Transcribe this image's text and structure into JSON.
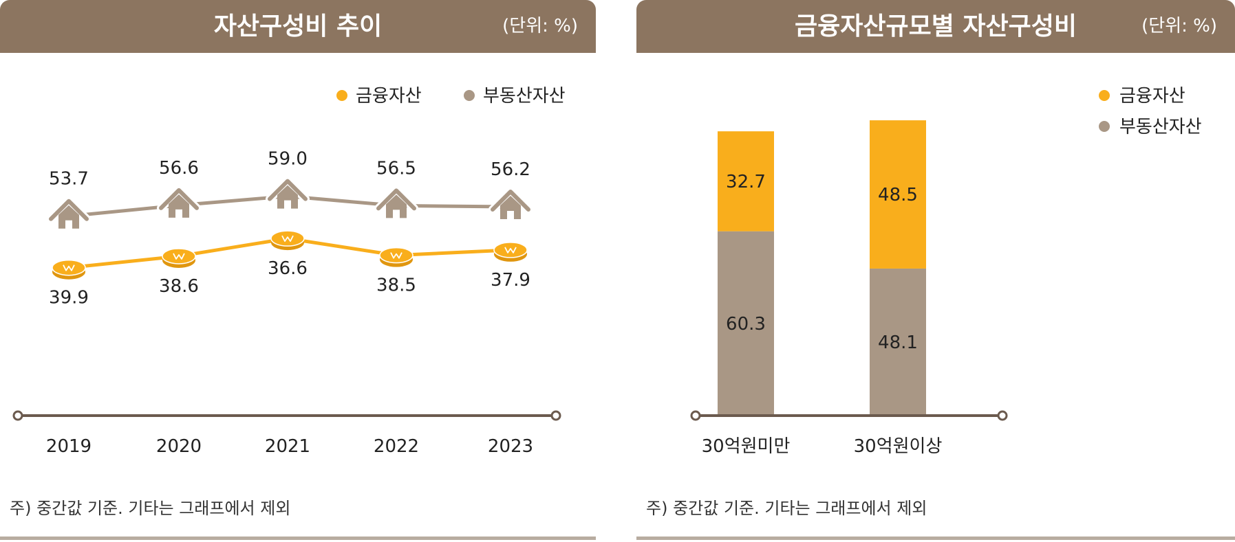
{
  "colors": {
    "financial": "#f9ae1c",
    "real_estate": "#a99785",
    "header_bg": "#8c7560",
    "axis": "#6b5a4e"
  },
  "left": {
    "title": "자산구성비 추이",
    "unit": "(단위: %)",
    "note": "주) 중간값 기준. 기타는 그래프에서 제외"
  },
  "right": {
    "title": "금융자산규모별 자산구성비",
    "unit": "(단위: %)",
    "note": "주) 중간값 기준. 기타는 그래프에서 제외"
  },
  "chart_data": [
    {
      "type": "line",
      "title": "자산구성비 추이",
      "unit": "(단위: %)",
      "categories": [
        "2019",
        "2020",
        "2021",
        "2022",
        "2023"
      ],
      "series": [
        {
          "name": "금융자산",
          "values": [
            39.9,
            38.6,
            36.6,
            38.5,
            37.9
          ],
          "labels": [
            "39.9",
            "38.6",
            "36.6",
            "38.5",
            "37.9"
          ],
          "marker": "coin-icon"
        },
        {
          "name": "부동산자산",
          "values": [
            53.7,
            56.6,
            59.0,
            56.5,
            56.2
          ],
          "labels": [
            "53.7",
            "56.6",
            "59.0",
            "56.5",
            "56.2"
          ],
          "marker": "house-icon"
        }
      ],
      "legend": [
        "금융자산",
        "부동산자산"
      ],
      "legend_position": "top-right"
    },
    {
      "type": "bar",
      "stacked": true,
      "title": "금융자산규모별 자산구성비",
      "unit": "(단위: %)",
      "categories": [
        "30억원미만",
        "30억원이상"
      ],
      "series": [
        {
          "name": "금융자산",
          "values": [
            32.7,
            48.5
          ],
          "labels": [
            "32.7",
            "48.5"
          ]
        },
        {
          "name": "부동산자산",
          "values": [
            60.3,
            48.1
          ],
          "labels": [
            "60.3",
            "48.1"
          ]
        }
      ],
      "legend": [
        "금융자산",
        "부동산자산"
      ],
      "legend_position": "top-right"
    }
  ]
}
